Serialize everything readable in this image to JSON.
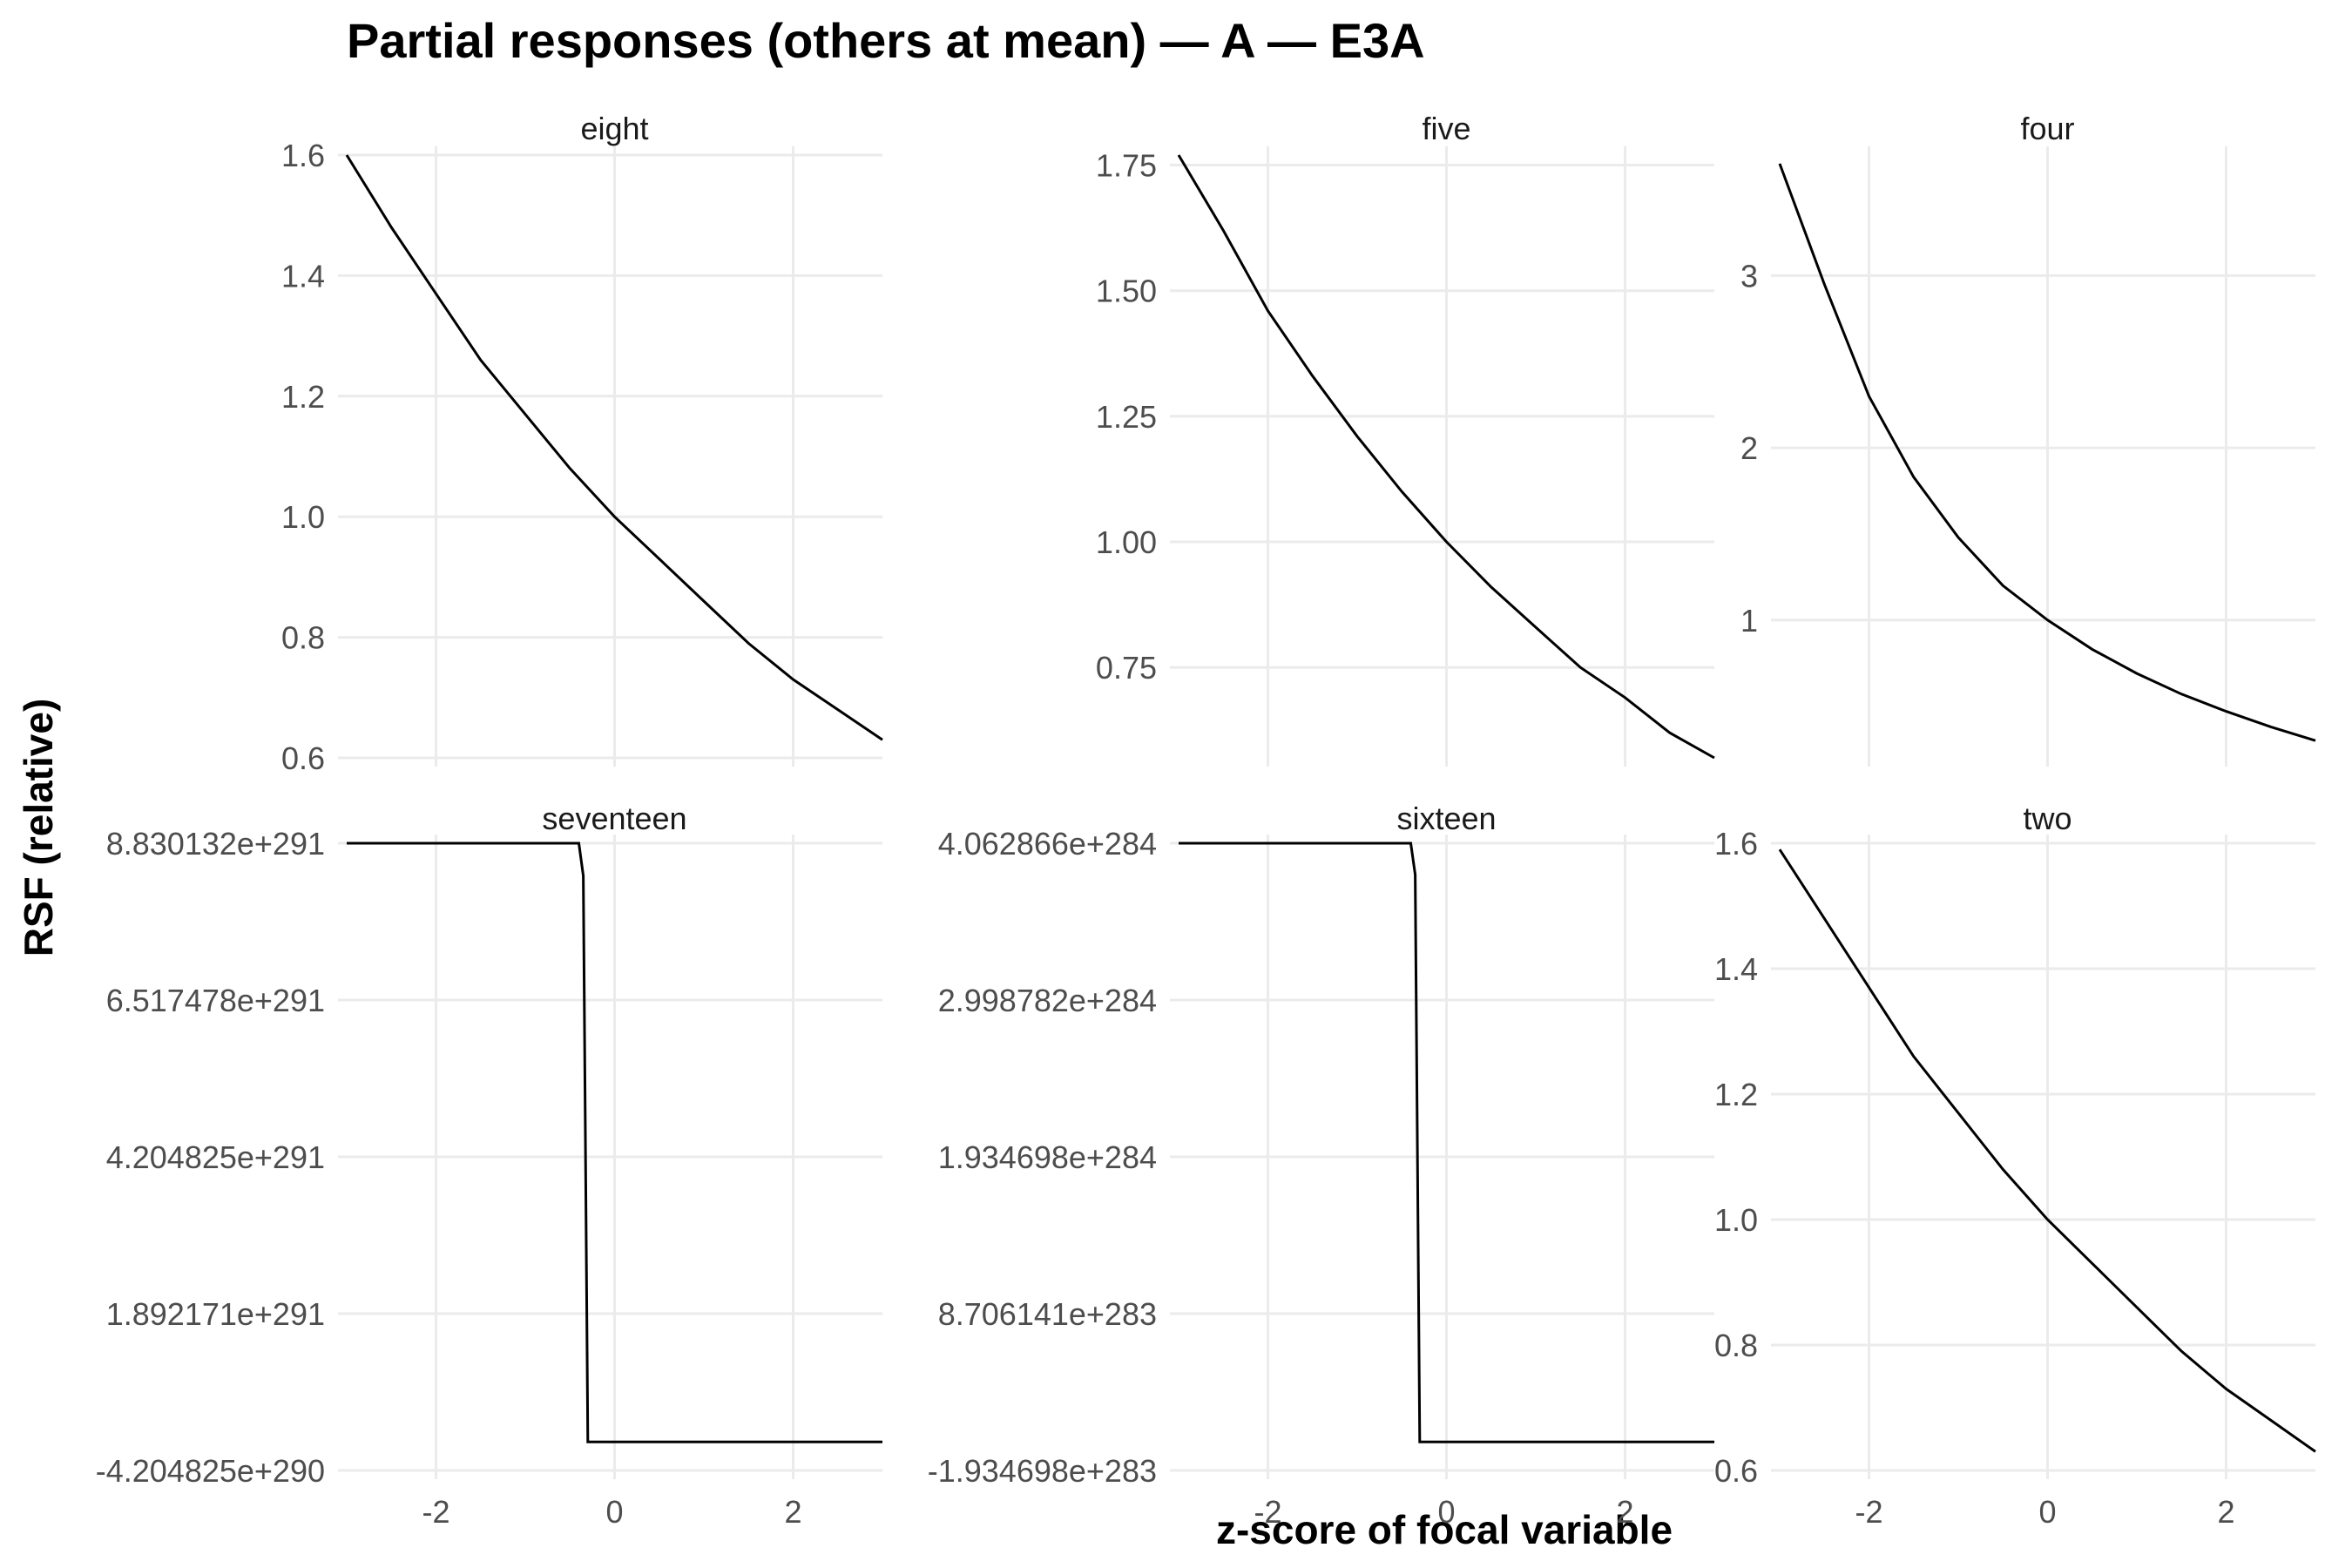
{
  "chart_data": {
    "type": "line",
    "title": "Partial responses (others at mean) — A — E3A",
    "xlabel": "z-score of focal variable",
    "ylabel": "RSF (relative)",
    "x_ticks": [
      "-2",
      "0",
      "2"
    ],
    "x_tick_values": [
      -2,
      0,
      2
    ],
    "xlim": [
      -3.0,
      3.0
    ],
    "grid": true,
    "line_color": "#000000",
    "grid_color": "#ebebeb",
    "panels": [
      {
        "name": "eight",
        "ylim": [
          0.6,
          1.6
        ],
        "y_ticks": [
          "0.6",
          "0.8",
          "1.0",
          "1.2",
          "1.4",
          "1.6"
        ],
        "y_tick_values": [
          0.6,
          0.8,
          1.0,
          1.2,
          1.4,
          1.6
        ],
        "x": [
          -3,
          -2.5,
          -2,
          -1.5,
          -1,
          -0.5,
          0,
          0.5,
          1,
          1.5,
          2,
          2.5,
          3
        ],
        "y": [
          1.6,
          1.48,
          1.37,
          1.26,
          1.17,
          1.08,
          1.0,
          0.93,
          0.86,
          0.79,
          0.73,
          0.68,
          0.63
        ]
      },
      {
        "name": "five",
        "ylim": [
          0.57,
          1.77
        ],
        "y_ticks": [
          "0.75",
          "1.00",
          "1.25",
          "1.50",
          "1.75"
        ],
        "y_tick_values": [
          0.75,
          1.0,
          1.25,
          1.5,
          1.75
        ],
        "x": [
          -3,
          -2.5,
          -2,
          -1.5,
          -1,
          -0.5,
          0,
          0.5,
          1,
          1.5,
          2,
          2.5,
          3
        ],
        "y": [
          1.77,
          1.62,
          1.46,
          1.33,
          1.21,
          1.1,
          1.0,
          0.91,
          0.83,
          0.75,
          0.69,
          0.62,
          0.57
        ]
      },
      {
        "name": "four",
        "ylim": [
          0.2,
          3.7
        ],
        "y_ticks": [
          "1",
          "2",
          "3"
        ],
        "y_tick_values": [
          1,
          2,
          3
        ],
        "x": [
          -3,
          -2.5,
          -2,
          -1.5,
          -1,
          -0.5,
          0,
          0.5,
          1,
          1.5,
          2,
          2.5,
          3
        ],
        "y": [
          3.65,
          2.95,
          2.3,
          1.83,
          1.48,
          1.2,
          1.0,
          0.83,
          0.69,
          0.57,
          0.47,
          0.38,
          0.3
        ]
      },
      {
        "name": "seventeen",
        "ylim": [
          -4.204825e+290,
          8.830132e+291
        ],
        "y_ticks": [
          "-4.204825e+290",
          "1.892171e+291",
          "4.204825e+291",
          "6.517478e+291",
          "8.830132e+291"
        ],
        "y_tick_values": [
          -4.204825e+290,
          1.892171e+291,
          4.204825e+291,
          6.517478e+291,
          8.830132e+291
        ],
        "x": [
          -3,
          -0.4,
          -0.35,
          -0.3,
          3
        ],
        "y": [
          8.830132e+291,
          8.830132e+291,
          8.35e+291,
          0,
          0
        ]
      },
      {
        "name": "sixteen",
        "ylim": [
          -1.934698e+283,
          4.062866e+284
        ],
        "y_ticks": [
          "-1.934698e+283",
          "8.706141e+283",
          "1.934698e+284",
          "2.998782e+284",
          "4.062866e+284"
        ],
        "y_tick_values": [
          -1.934698e+283,
          8.706141e+283,
          1.934698e+284,
          2.998782e+284,
          4.062866e+284
        ],
        "x": [
          -3,
          -0.4,
          -0.35,
          -0.3,
          3
        ],
        "y": [
          4.062866e+284,
          4.062866e+284,
          3.85e+284,
          0,
          0
        ]
      },
      {
        "name": "two",
        "ylim": [
          0.6,
          1.6
        ],
        "y_ticks": [
          "0.6",
          "0.8",
          "1.0",
          "1.2",
          "1.4",
          "1.6"
        ],
        "y_tick_values": [
          0.6,
          0.8,
          1.0,
          1.2,
          1.4,
          1.6
        ],
        "x": [
          -3,
          -2.5,
          -2,
          -1.5,
          -1,
          -0.5,
          0,
          0.5,
          1,
          1.5,
          2,
          2.5,
          3
        ],
        "y": [
          1.59,
          1.48,
          1.37,
          1.26,
          1.17,
          1.08,
          1.0,
          0.93,
          0.86,
          0.79,
          0.73,
          0.68,
          0.63
        ]
      }
    ]
  }
}
